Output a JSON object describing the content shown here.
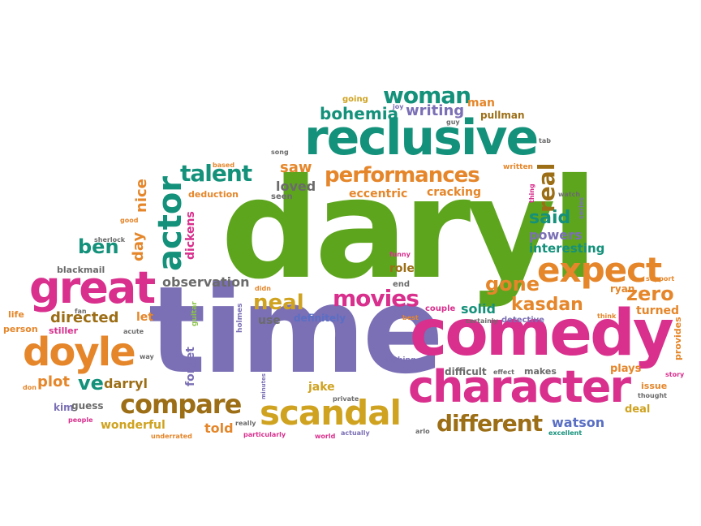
{
  "colors": {
    "green": "#5ea51e",
    "purple": "#7b6fb5",
    "magenta": "#d92f8d",
    "orange": "#e5862a",
    "teal": "#14917a",
    "brown": "#9c6e16",
    "grey": "#6b6b6b",
    "mustard": "#cfa21f",
    "blue": "#5a6fc4",
    "lightgreen": "#8bc34a"
  },
  "words": [
    {
      "text": "daryl",
      "color": "green",
      "weight": 240
    },
    {
      "text": "time",
      "color": "purple",
      "weight": 200
    },
    {
      "text": "comedy",
      "color": "magenta",
      "weight": 100
    },
    {
      "text": "reclusive",
      "color": "teal",
      "weight": 90
    },
    {
      "text": "character",
      "color": "magenta",
      "weight": 70
    },
    {
      "text": "great",
      "color": "magenta",
      "weight": 60
    },
    {
      "text": "doyle",
      "color": "orange",
      "weight": 55
    },
    {
      "text": "expect",
      "color": "orange",
      "weight": 55
    },
    {
      "text": "scandal",
      "color": "mustard",
      "weight": 50
    },
    {
      "text": "actor",
      "color": "teal",
      "weight": 45
    },
    {
      "text": "compare",
      "color": "brown",
      "weight": 42
    },
    {
      "text": "performances",
      "color": "orange",
      "weight": 38
    },
    {
      "text": "movies",
      "color": "magenta",
      "weight": 36
    },
    {
      "text": "different",
      "color": "brown",
      "weight": 36
    },
    {
      "text": "real",
      "color": "brown",
      "weight": 34
    },
    {
      "text": "woman",
      "color": "teal",
      "weight": 34
    },
    {
      "text": "talent",
      "color": "teal",
      "weight": 34
    },
    {
      "text": "neal",
      "color": "mustard",
      "weight": 32
    },
    {
      "text": "zero",
      "color": "orange",
      "weight": 30
    },
    {
      "text": "gone",
      "color": "orange",
      "weight": 30
    },
    {
      "text": "kasdan",
      "color": "orange",
      "weight": 28
    },
    {
      "text": "ben",
      "color": "teal",
      "weight": 28
    },
    {
      "text": "said",
      "color": "teal",
      "weight": 28
    },
    {
      "text": "ve",
      "color": "teal",
      "weight": 28
    },
    {
      "text": "bohemia",
      "color": "teal",
      "weight": 26
    },
    {
      "text": "writing",
      "color": "purple",
      "weight": 22
    },
    {
      "text": "saw",
      "color": "orange",
      "weight": 22
    },
    {
      "text": "loved",
      "color": "grey",
      "weight": 20
    },
    {
      "text": "directed",
      "color": "brown",
      "weight": 22
    },
    {
      "text": "observation",
      "color": "grey",
      "weight": 20
    },
    {
      "text": "plot",
      "color": "orange",
      "weight": 22
    },
    {
      "text": "darryl",
      "color": "brown",
      "weight": 20
    },
    {
      "text": "solid",
      "color": "teal",
      "weight": 20
    },
    {
      "text": "told",
      "color": "orange",
      "weight": 20
    },
    {
      "text": "watson",
      "color": "blue",
      "weight": 20
    },
    {
      "text": "powers",
      "color": "purple",
      "weight": 20
    },
    {
      "text": "interesting",
      "color": "teal",
      "weight": 18
    },
    {
      "text": "day",
      "color": "orange",
      "weight": 22
    },
    {
      "text": "nice",
      "color": "orange",
      "weight": 22
    },
    {
      "text": "eccentric",
      "color": "orange",
      "weight": 18
    },
    {
      "text": "cracking",
      "color": "orange",
      "weight": 18
    },
    {
      "text": "man",
      "color": "orange",
      "weight": 18
    },
    {
      "text": "wonderful",
      "color": "mustard",
      "weight": 18
    },
    {
      "text": "jake",
      "color": "mustard",
      "weight": 16
    },
    {
      "text": "turned",
      "color": "orange",
      "weight": 18
    },
    {
      "text": "plays",
      "color": "orange",
      "weight": 16
    },
    {
      "text": "deal",
      "color": "mustard",
      "weight": 16
    },
    {
      "text": "role",
      "color": "brown",
      "weight": 16
    },
    {
      "text": "let",
      "color": "orange",
      "weight": 16
    },
    {
      "text": "use",
      "color": "grey",
      "weight": 16
    },
    {
      "text": "definitely",
      "color": "blue",
      "weight": 14
    },
    {
      "text": "difficult",
      "color": "grey",
      "weight": 14
    },
    {
      "text": "forget",
      "color": "purple",
      "weight": 16
    },
    {
      "text": "dickens",
      "color": "magenta",
      "weight": 16
    },
    {
      "text": "deduction",
      "color": "orange",
      "weight": 14
    },
    {
      "text": "pullman",
      "color": "brown",
      "weight": 14
    },
    {
      "text": "ryan",
      "color": "orange",
      "weight": 14
    },
    {
      "text": "kim",
      "color": "purple",
      "weight": 14
    },
    {
      "text": "guess",
      "color": "grey",
      "weight": 14
    },
    {
      "text": "blackmail",
      "color": "grey",
      "weight": 13
    },
    {
      "text": "person",
      "color": "orange",
      "weight": 13
    },
    {
      "text": "life",
      "color": "orange",
      "weight": 13
    },
    {
      "text": "stiller",
      "color": "magenta",
      "weight": 13
    },
    {
      "text": "issue",
      "color": "orange",
      "weight": 13
    },
    {
      "text": "makes",
      "color": "grey",
      "weight": 13
    },
    {
      "text": "detective",
      "color": "purple",
      "weight": 12
    },
    {
      "text": "couple",
      "color": "magenta",
      "weight": 12
    },
    {
      "text": "end",
      "color": "grey",
      "weight": 12
    },
    {
      "text": "seen",
      "color": "grey",
      "weight": 12
    },
    {
      "text": "going",
      "color": "mustard",
      "weight": 12
    },
    {
      "text": "guitar",
      "color": "lightgreen",
      "weight": 11
    },
    {
      "text": "holmes",
      "color": "purple",
      "weight": 10
    },
    {
      "text": "provides",
      "color": "orange",
      "weight": 11
    },
    {
      "text": "sherlock",
      "color": "grey",
      "weight": 10
    },
    {
      "text": "watching",
      "color": "purple",
      "weight": 10
    },
    {
      "text": "effect",
      "color": "grey",
      "weight": 10
    },
    {
      "text": "written",
      "color": "orange",
      "weight": 10
    },
    {
      "text": "joy",
      "color": "purple",
      "weight": 10
    },
    {
      "text": "guy",
      "color": "grey",
      "weight": 9
    },
    {
      "text": "tab",
      "color": "grey",
      "weight": 9
    },
    {
      "text": "based",
      "color": "orange",
      "weight": 9
    },
    {
      "text": "song",
      "color": "grey",
      "weight": 9
    },
    {
      "text": "thing",
      "color": "magenta",
      "weight": 9
    },
    {
      "text": "watch",
      "color": "grey",
      "weight": 9
    },
    {
      "text": "series",
      "color": "purple",
      "weight": 9
    },
    {
      "text": "good",
      "color": "orange",
      "weight": 9
    },
    {
      "text": "funny",
      "color": "magenta",
      "weight": 9
    },
    {
      "text": "didn",
      "color": "orange",
      "weight": 9
    },
    {
      "text": "fan",
      "color": "grey",
      "weight": 9
    },
    {
      "text": "acute",
      "color": "grey",
      "weight": 9
    },
    {
      "text": "way",
      "color": "grey",
      "weight": 9
    },
    {
      "text": "don",
      "color": "orange",
      "weight": 9
    },
    {
      "text": "people",
      "color": "magenta",
      "weight": 9
    },
    {
      "text": "minutes",
      "color": "purple",
      "weight": 8
    },
    {
      "text": "private",
      "color": "grey",
      "weight": 9
    },
    {
      "text": "really",
      "color": "grey",
      "weight": 9
    },
    {
      "text": "particularly",
      "color": "magenta",
      "weight": 9
    },
    {
      "text": "underrated",
      "color": "orange",
      "weight": 9
    },
    {
      "text": "world",
      "color": "magenta",
      "weight": 9
    },
    {
      "text": "actually",
      "color": "purple",
      "weight": 9
    },
    {
      "text": "arlo",
      "color": "grey",
      "weight": 9
    },
    {
      "text": "excellent",
      "color": "teal",
      "weight": 9
    },
    {
      "text": "best",
      "color": "orange",
      "weight": 9
    },
    {
      "text": "certainly",
      "color": "grey",
      "weight": 9
    },
    {
      "text": "think",
      "color": "orange",
      "weight": 9
    },
    {
      "text": "support",
      "color": "orange",
      "weight": 9
    },
    {
      "text": "story",
      "color": "magenta",
      "weight": 9
    },
    {
      "text": "thought",
      "color": "grey",
      "weight": 9
    }
  ]
}
